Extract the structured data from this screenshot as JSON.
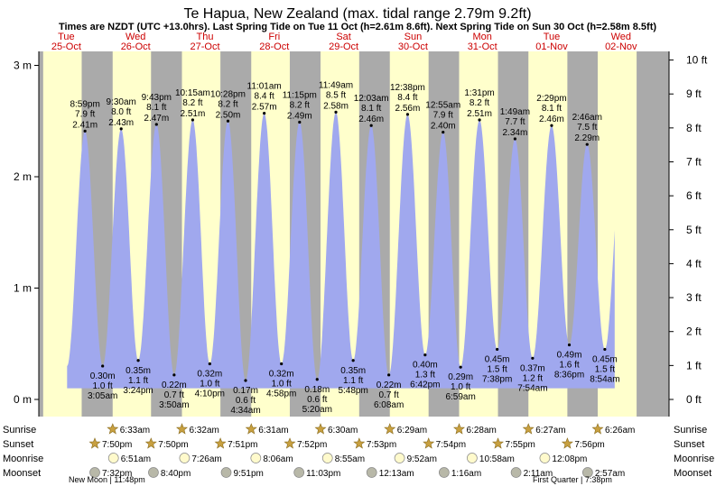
{
  "title": "Te Hapua, New Zealand (max. tidal range 2.79m 9.2ft)",
  "subtitle": "Times are NZDT (UTC +13.0hrs). Last Spring Tide on Tue 11 Oct (h=2.61m 8.6ft). Next Spring Tide on Sun 30 Oct (h=2.58m 8.5ft)",
  "colors": {
    "day_bg": "#ffffcc",
    "night_bg": "#aaaaaa",
    "tide_fill": "#a0a8ee",
    "day_label": "#cc0000",
    "sun_icon": "#c8a040",
    "moon_icon": "#fffacc",
    "moonset_icon": "#b8b8a8"
  },
  "days": [
    {
      "dow": "Tue",
      "date": "25-Oct"
    },
    {
      "dow": "Wed",
      "date": "26-Oct"
    },
    {
      "dow": "Thu",
      "date": "27-Oct"
    },
    {
      "dow": "Fri",
      "date": "28-Oct"
    },
    {
      "dow": "Sat",
      "date": "29-Oct"
    },
    {
      "dow": "Sun",
      "date": "30-Oct"
    },
    {
      "dow": "Mon",
      "date": "31-Oct"
    },
    {
      "dow": "Tue",
      "date": "01-Nov"
    },
    {
      "dow": "Wed",
      "date": "02-Nov"
    }
  ],
  "row_labels": {
    "sunrise": "Sunrise",
    "sunset": "Sunset",
    "moonrise": "Moonrise",
    "moonset": "Moonset"
  },
  "moon_phases": [
    {
      "name": "New Moon",
      "time": "11:48pm"
    },
    {
      "name": "First Quarter",
      "time": "7:38pm"
    }
  ],
  "chart_data": {
    "type": "area",
    "title": "Te Hapua, New Zealand (max. tidal range 2.79m 9.2ft)",
    "x_unit": "hours from 00:00 Tue 25-Oct (NZDT)",
    "x_range": [
      -12,
      204
    ],
    "y_left": {
      "unit": "m",
      "range": [
        -0.15,
        3.2
      ],
      "ticks": [
        0,
        1,
        2,
        3
      ],
      "tick_labels": [
        "0 m",
        "1 m",
        "2 m",
        "3 m"
      ]
    },
    "y_right": {
      "unit": "ft",
      "ticks": [
        0,
        1,
        2,
        3,
        4,
        5,
        6,
        7,
        8,
        9,
        10
      ],
      "tick_labels": [
        "0 ft",
        "1 ft",
        "2 ft",
        "3 ft",
        "4 ft",
        "5 ft",
        "6 ft",
        "7 ft",
        "8 ft",
        "9 ft",
        "10 ft"
      ]
    },
    "tides": [
      {
        "t": "8:59 pm",
        "h": 2.41,
        "ft": "7.9 ft",
        "m": "2.41 m",
        "type": "high",
        "day": 0
      },
      {
        "t": "3:05 am",
        "h": 0.3,
        "ft": "1.0 ft",
        "m": "0.30 m",
        "type": "low",
        "day": 1
      },
      {
        "t": "9:30 am",
        "h": 2.43,
        "ft": "8.0 ft",
        "m": "2.43 m",
        "type": "high",
        "day": 1
      },
      {
        "t": "3:24 pm",
        "h": 0.35,
        "ft": "1.1 ft",
        "m": "0.35 m",
        "type": "low",
        "day": 1
      },
      {
        "t": "9:43 pm",
        "h": 2.47,
        "ft": "8.1 ft",
        "m": "2.47 m",
        "type": "high",
        "day": 1
      },
      {
        "t": "3:50 am",
        "h": 0.22,
        "ft": "0.7 ft",
        "m": "0.22 m",
        "type": "low",
        "day": 2
      },
      {
        "t": "10:15 am",
        "h": 2.51,
        "ft": "8.2 ft",
        "m": "2.51 m",
        "type": "high",
        "day": 2
      },
      {
        "t": "4:10 pm",
        "h": 0.32,
        "ft": "1.0 ft",
        "m": "0.32 m",
        "type": "low",
        "day": 2
      },
      {
        "t": "10:28 pm",
        "h": 2.5,
        "ft": "8.2 ft",
        "m": "2.50 m",
        "type": "high",
        "day": 2
      },
      {
        "t": "4:34 am",
        "h": 0.17,
        "ft": "0.6 ft",
        "m": "0.17 m",
        "type": "low",
        "day": 3
      },
      {
        "t": "11:01 am",
        "h": 2.57,
        "ft": "8.4 ft",
        "m": "2.57 m",
        "type": "high",
        "day": 3
      },
      {
        "t": "4:58 pm",
        "h": 0.32,
        "ft": "1.0 ft",
        "m": "0.32 m",
        "type": "low",
        "day": 3
      },
      {
        "t": "11:15 pm",
        "h": 2.49,
        "ft": "8.2 ft",
        "m": "2.49 m",
        "type": "high",
        "day": 3
      },
      {
        "t": "5:20 am",
        "h": 0.18,
        "ft": "0.6 ft",
        "m": "0.18 m",
        "type": "low",
        "day": 4
      },
      {
        "t": "11:49 am",
        "h": 2.58,
        "ft": "8.5 ft",
        "m": "2.58 m",
        "type": "high",
        "day": 4
      },
      {
        "t": "5:48 pm",
        "h": 0.35,
        "ft": "1.1 ft",
        "m": "0.35 m",
        "type": "low",
        "day": 4
      },
      {
        "t": "12:03 am",
        "h": 2.46,
        "ft": "8.1 ft",
        "m": "2.46 m",
        "type": "high",
        "day": 5
      },
      {
        "t": "6:08 am",
        "h": 0.22,
        "ft": "0.7 ft",
        "m": "0.22 m",
        "type": "low",
        "day": 5
      },
      {
        "t": "12:38 pm",
        "h": 2.56,
        "ft": "8.4 ft",
        "m": "2.56 m",
        "type": "high",
        "day": 5
      },
      {
        "t": "6:42 pm",
        "h": 0.4,
        "ft": "1.3 ft",
        "m": "0.40 m",
        "type": "low",
        "day": 5
      },
      {
        "t": "12:55 am",
        "h": 2.4,
        "ft": "7.9 ft",
        "m": "2.40 m",
        "type": "high",
        "day": 6
      },
      {
        "t": "6:59 am",
        "h": 0.29,
        "ft": "1.0 ft",
        "m": "0.29 m",
        "type": "low",
        "day": 6
      },
      {
        "t": "1:31 pm",
        "h": 2.51,
        "ft": "8.2 ft",
        "m": "2.51 m",
        "type": "high",
        "day": 6
      },
      {
        "t": "7:38 pm",
        "h": 0.45,
        "ft": "1.5 ft",
        "m": "0.45 m",
        "type": "low",
        "day": 6
      },
      {
        "t": "1:49 am",
        "h": 2.34,
        "ft": "7.7 ft",
        "m": "2.34 m",
        "type": "high",
        "day": 7
      },
      {
        "t": "7:54 am",
        "h": 0.37,
        "ft": "1.2 ft",
        "m": "0.37 m",
        "type": "low",
        "day": 7
      },
      {
        "t": "2:29 pm",
        "h": 2.46,
        "ft": "8.1 ft",
        "m": "2.46 m",
        "type": "high",
        "day": 7
      },
      {
        "t": "8:36 pm",
        "h": 0.49,
        "ft": "1.6 ft",
        "m": "0.49 m",
        "type": "low",
        "day": 7
      },
      {
        "t": "2:46 am",
        "h": 2.29,
        "ft": "7.5 ft",
        "m": "2.29 m",
        "type": "high",
        "day": 8
      },
      {
        "t": "8:54 am",
        "h": 0.45,
        "ft": "1.5 ft",
        "m": "0.45 m",
        "type": "low",
        "day": 8
      }
    ],
    "sun_moon": [
      {
        "day": 0,
        "sunset": "7:50pm",
        "moonset": "7:32pm"
      },
      {
        "day": 1,
        "sunrise": "6:33am",
        "sunset": "7:50pm",
        "moonrise": "6:51am",
        "moonset": "8:40pm"
      },
      {
        "day": 2,
        "sunrise": "6:32am",
        "sunset": "7:51pm",
        "moonrise": "7:26am",
        "moonset": "9:51pm"
      },
      {
        "day": 3,
        "sunrise": "6:31am",
        "sunset": "7:52pm",
        "moonrise": "8:06am",
        "moonset": "11:03pm"
      },
      {
        "day": 4,
        "sunrise": "6:30am",
        "sunset": "7:53pm",
        "moonrise": "8:55am"
      },
      {
        "day": 5,
        "sunrise": "6:29am",
        "sunset": "7:54pm",
        "moonrise": "9:52am",
        "moonset": "12:13am"
      },
      {
        "day": 6,
        "sunrise": "6:28am",
        "sunset": "7:55pm",
        "moonrise": "10:58am",
        "moonset": "1:16am"
      },
      {
        "day": 7,
        "sunrise": "6:27am",
        "sunset": "7:56pm",
        "moonrise": "12:08pm",
        "moonset": "2:11am"
      },
      {
        "day": 8,
        "sunrise": "6:26am",
        "moonset": "2:57am"
      }
    ]
  }
}
